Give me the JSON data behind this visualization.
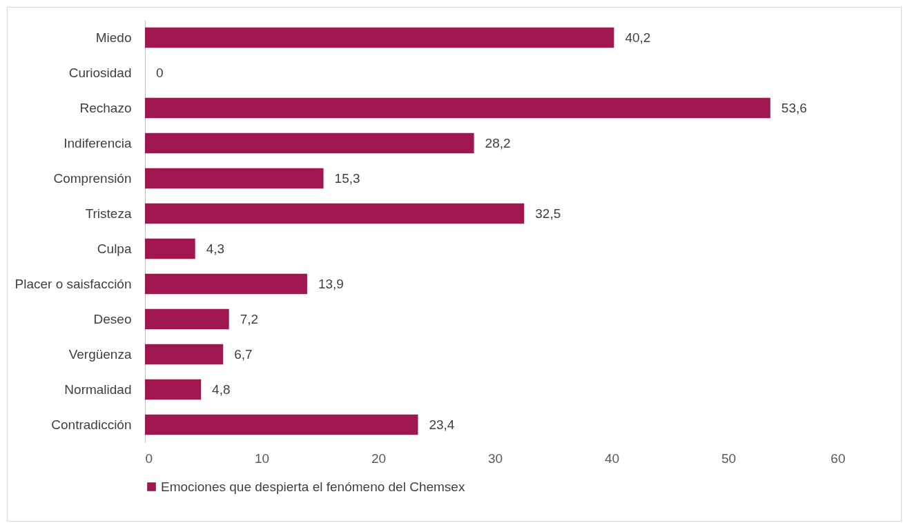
{
  "chart_data": {
    "type": "bar",
    "orientation": "horizontal",
    "categories": [
      "Miedo",
      "Curiosidad",
      "Rechazo",
      "Indiferencia",
      "Comprensión",
      "Tristeza",
      "Culpa",
      "Placer o saisfacción",
      "Deseo",
      "Vergüenza",
      "Normalidad",
      "Contradicción"
    ],
    "series": [
      {
        "name": "Emociones que despierta el fenómeno del Chemsex",
        "color": "#a0174f",
        "values": [
          40.2,
          0,
          53.6,
          28.2,
          15.3,
          32.5,
          4.3,
          13.9,
          7.2,
          6.7,
          4.8,
          23.4
        ],
        "value_labels": [
          "40,2",
          "0",
          "53,6",
          "28,2",
          "15,3",
          "32,5",
          "4,3",
          "13,9",
          "7,2",
          "6,7",
          "4,8",
          "23,4"
        ]
      }
    ],
    "xlim": [
      0,
      60
    ],
    "xticks": [
      0,
      10,
      20,
      30,
      40,
      50,
      60
    ],
    "legend": "bottom"
  }
}
